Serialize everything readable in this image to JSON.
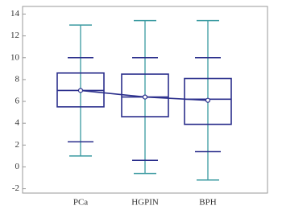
{
  "chart_data": {
    "type": "box",
    "categories": [
      "PCa",
      "HGPIN",
      "BPH"
    ],
    "boxes": [
      {
        "outer_low": 1,
        "low": 2.3,
        "q1": 5.5,
        "median": 7,
        "q3": 8.6,
        "high": 10,
        "outer_high": 13,
        "mean": 7
      },
      {
        "outer_low": -0.6,
        "low": 0.6,
        "q1": 4.6,
        "median": 6.4,
        "q3": 8.5,
        "high": 10,
        "outer_high": 13.4,
        "mean": 6.4
      },
      {
        "outer_low": -1.2,
        "low": 1.4,
        "q1": 3.9,
        "median": 6.2,
        "q3": 8.1,
        "high": 10,
        "outer_high": 13.4,
        "mean": 6.1
      }
    ],
    "box_color": "#2b2f8c",
    "outer_color": "#3a9aa0",
    "ylim": [
      -2.4,
      14.7
    ],
    "yticks": [
      -2,
      0,
      2,
      4,
      6,
      8,
      10,
      12,
      14
    ]
  }
}
